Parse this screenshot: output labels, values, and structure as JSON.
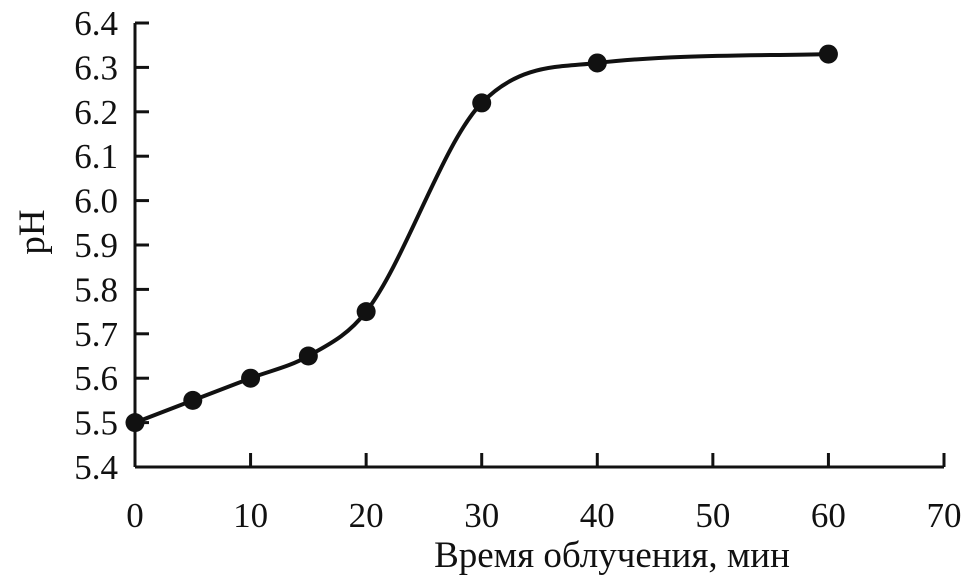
{
  "chart_data": {
    "type": "line",
    "title": "",
    "xlabel": "Время облучения, мин",
    "ylabel": "pH",
    "xlim": [
      0,
      70
    ],
    "ylim": [
      5.4,
      6.4
    ],
    "x_ticks": [
      "0",
      "10",
      "20",
      "30",
      "40",
      "50",
      "60",
      "70"
    ],
    "y_ticks": [
      "5.4",
      "5.5",
      "5.6",
      "5.7",
      "5.8",
      "5.9",
      "6.0",
      "6.1",
      "6.2",
      "6.3",
      "6.4"
    ],
    "grid": false,
    "legend": "none",
    "series": [
      {
        "x": [
          0,
          5,
          10,
          15,
          20,
          30,
          40,
          60
        ],
        "y": [
          5.5,
          5.55,
          5.6,
          5.65,
          5.75,
          6.22,
          6.31,
          6.33
        ],
        "smooth": true,
        "markers": true
      }
    ],
    "colors": {
      "line": "#111111",
      "marker": "#111111",
      "axis": "#111111"
    }
  }
}
